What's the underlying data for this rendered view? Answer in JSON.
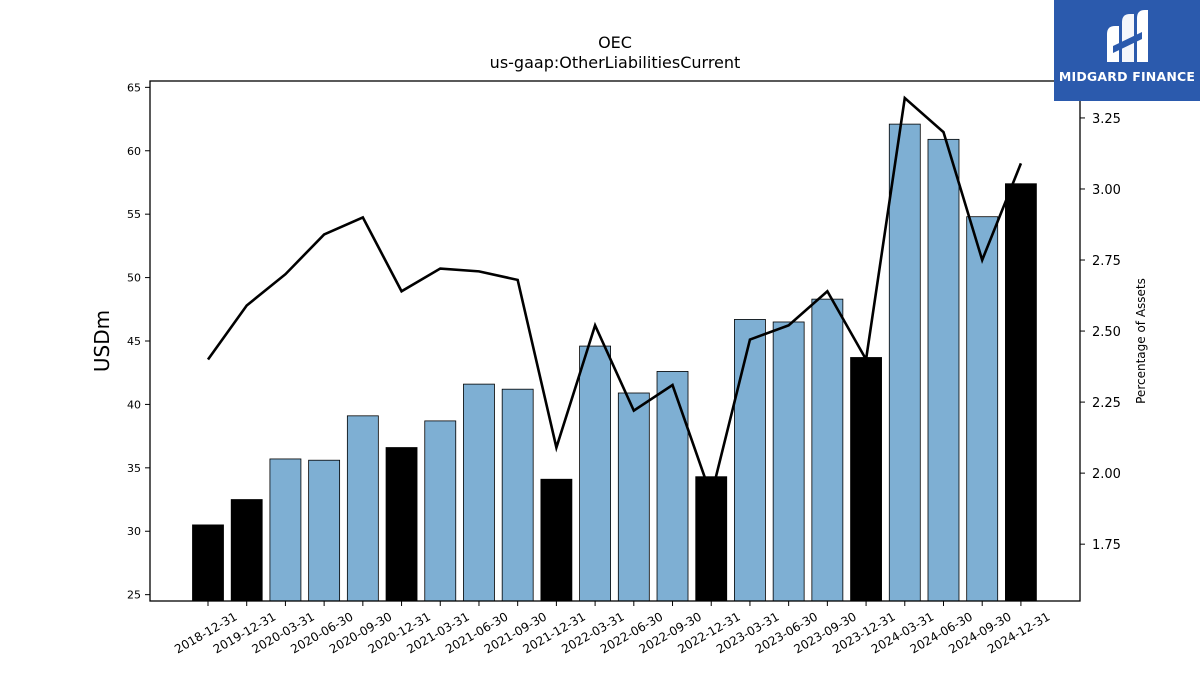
{
  "chart_data": {
    "type": "bar",
    "title": "OEC",
    "subtitle": "us-gaap:OtherLiabilitiesCurrent",
    "ylabel": "USDm",
    "y2label": "Percentage of Assets",
    "categories": [
      "2018-12-31",
      "2019-12-31",
      "2020-03-31",
      "2020-06-30",
      "2020-09-30",
      "2020-12-31",
      "2021-03-31",
      "2021-06-30",
      "2021-09-30",
      "2021-12-31",
      "2022-03-31",
      "2022-06-30",
      "2022-09-30",
      "2022-12-31",
      "2023-03-31",
      "2023-06-30",
      "2023-09-30",
      "2023-12-31",
      "2024-03-31",
      "2024-06-30",
      "2024-09-30",
      "2024-12-31"
    ],
    "series": [
      {
        "values": [
          30.5,
          32.5,
          35.7,
          35.6,
          39.1,
          36.6,
          38.7,
          41.6,
          41.2,
          34.1,
          44.6,
          40.9,
          42.6,
          34.3,
          46.7,
          46.5,
          48.3,
          43.7,
          62.1,
          60.9,
          54.8,
          57.4
        ],
        "highlight": [
          true,
          true,
          false,
          false,
          false,
          true,
          false,
          false,
          false,
          true,
          false,
          false,
          false,
          true,
          false,
          false,
          false,
          true,
          false,
          false,
          false,
          true
        ]
      },
      {
        "axis": "right",
        "values": [
          2.4,
          2.59,
          2.7,
          2.84,
          2.9,
          2.64,
          2.72,
          2.71,
          2.68,
          2.09,
          2.52,
          2.22,
          2.31,
          1.92,
          2.47,
          2.52,
          2.64,
          2.4,
          3.32,
          3.2,
          2.75,
          3.09
        ]
      }
    ],
    "ylim": [
      24.5,
      65.5
    ],
    "y2lim": [
      1.55,
      3.38
    ],
    "yticks": [
      25,
      30,
      35,
      40,
      45,
      50,
      55,
      60,
      65
    ],
    "y2ticks": [
      1.75,
      2.0,
      2.25,
      2.5,
      2.75,
      3.0,
      3.25
    ],
    "colors": {
      "bar": "#7eafd3",
      "highlight": "#000000",
      "line": "#000000"
    }
  },
  "logo": {
    "text": "MIDGARD FINANCE"
  }
}
